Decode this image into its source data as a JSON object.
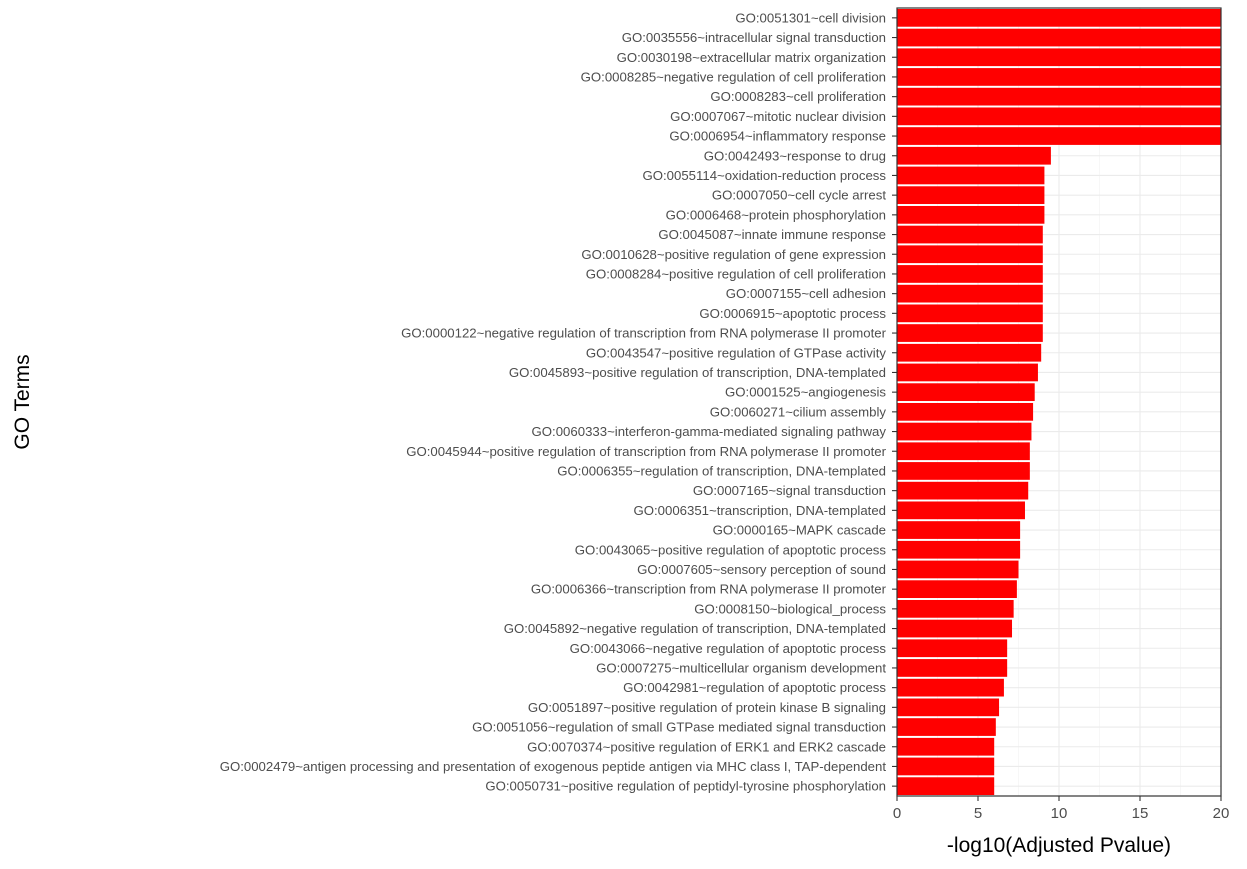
{
  "chart_data": {
    "type": "bar",
    "orientation": "horizontal",
    "xlabel": "-log10(Adjusted Pvalue)",
    "ylabel": "GO Terms",
    "xlim": [
      0,
      20
    ],
    "xticks": [
      0,
      5,
      10,
      15,
      20
    ],
    "xtick_labels": [
      "0",
      "5",
      "10",
      "15",
      "20"
    ],
    "bar_color": "#ff0000",
    "grid": true,
    "legend": "none",
    "categories": [
      "GO:0051301~cell division",
      "GO:0035556~intracellular signal transduction",
      "GO:0030198~extracellular matrix organization",
      "GO:0008285~negative regulation of cell proliferation",
      "GO:0008283~cell proliferation",
      "GO:0007067~mitotic nuclear division",
      "GO:0006954~inflammatory response",
      "GO:0042493~response to drug",
      "GO:0055114~oxidation-reduction process",
      "GO:0007050~cell cycle arrest",
      "GO:0006468~protein phosphorylation",
      "GO:0045087~innate immune response",
      "GO:0010628~positive regulation of gene expression",
      "GO:0008284~positive regulation of cell proliferation",
      "GO:0007155~cell adhesion",
      "GO:0006915~apoptotic process",
      "GO:0000122~negative regulation of transcription from RNA polymerase II promoter",
      "GO:0043547~positive regulation of GTPase activity",
      "GO:0045893~positive regulation of transcription, DNA-templated",
      "GO:0001525~angiogenesis",
      "GO:0060271~cilium assembly",
      "GO:0060333~interferon-gamma-mediated signaling pathway",
      "GO:0045944~positive regulation of transcription from RNA polymerase II promoter",
      "GO:0006355~regulation of transcription, DNA-templated",
      "GO:0007165~signal transduction",
      "GO:0006351~transcription, DNA-templated",
      "GO:0000165~MAPK cascade",
      "GO:0043065~positive regulation of apoptotic process",
      "GO:0007605~sensory perception of sound",
      "GO:0006366~transcription from RNA polymerase II promoter",
      "GO:0008150~biological_process",
      "GO:0045892~negative regulation of transcription, DNA-templated",
      "GO:0043066~negative regulation of apoptotic process",
      "GO:0007275~multicellular organism development",
      "GO:0042981~regulation of apoptotic process",
      "GO:0051897~positive regulation of protein kinase B signaling",
      "GO:0051056~regulation of small GTPase mediated signal transduction",
      "GO:0070374~positive regulation of ERK1 and ERK2 cascade",
      "GO:0002479~antigen processing and presentation of exogenous peptide antigen via MHC class I, TAP-dependent",
      "GO:0050731~positive regulation of peptidyl-tyrosine phosphorylation"
    ],
    "values": [
      20,
      20,
      20,
      20,
      20,
      20,
      20,
      9.5,
      9.1,
      9.1,
      9.1,
      9.0,
      9.0,
      9.0,
      9.0,
      9.0,
      9.0,
      8.9,
      8.7,
      8.5,
      8.4,
      8.3,
      8.2,
      8.2,
      8.1,
      7.9,
      7.6,
      7.6,
      7.5,
      7.4,
      7.2,
      7.1,
      6.8,
      6.8,
      6.6,
      6.3,
      6.1,
      6.0,
      6.0,
      6.0
    ]
  }
}
